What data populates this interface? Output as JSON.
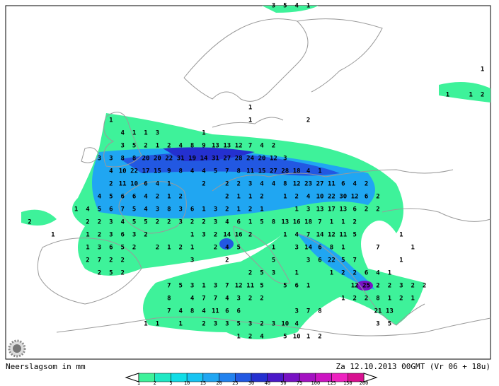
{
  "map": {
    "rows": [
      [
        null,
        null,
        null,
        null,
        null,
        null,
        null,
        null,
        null,
        null,
        null,
        null,
        null,
        null,
        null,
        null,
        null,
        null,
        null,
        null,
        null,
        3,
        5,
        4,
        1
      ],
      [],
      [],
      [],
      [],
      [
        null,
        null,
        null,
        null,
        null,
        null,
        null,
        null,
        null,
        null,
        null,
        null,
        null,
        null,
        null,
        null,
        null,
        null,
        null,
        null,
        null,
        null,
        null,
        null,
        null,
        null,
        null,
        null,
        null,
        null,
        null,
        null,
        null,
        null,
        null,
        null,
        null,
        null,
        null,
        1
      ],
      [],
      [
        null,
        null,
        null,
        null,
        null,
        null,
        null,
        null,
        null,
        null,
        null,
        null,
        null,
        null,
        null,
        null,
        null,
        null,
        null,
        null,
        null,
        null,
        null,
        null,
        null,
        null,
        null,
        null,
        null,
        null,
        null,
        null,
        null,
        null,
        null,
        null,
        1,
        null,
        1,
        2
      ],
      [
        null,
        null,
        null,
        null,
        null,
        null,
        null,
        null,
        null,
        null,
        null,
        null,
        null,
        null,
        null,
        null,
        null,
        null,
        null,
        1
      ],
      [
        null,
        null,
        null,
        null,
        null,
        null,
        null,
        1,
        null,
        null,
        null,
        null,
        null,
        null,
        null,
        null,
        null,
        null,
        null,
        1,
        null,
        null,
        null,
        null,
        2
      ],
      [
        null,
        null,
        null,
        null,
        null,
        null,
        null,
        null,
        4,
        1,
        1,
        3,
        null,
        null,
        null,
        1
      ],
      [
        null,
        null,
        null,
        null,
        null,
        null,
        null,
        null,
        3,
        5,
        2,
        1,
        2,
        4,
        8,
        9,
        13,
        13,
        12,
        7,
        4,
        2
      ],
      [
        null,
        null,
        null,
        null,
        null,
        null,
        3,
        3,
        8,
        8,
        20,
        20,
        22,
        31,
        19,
        14,
        31,
        27,
        28,
        24,
        20,
        12,
        3
      ],
      [
        null,
        null,
        null,
        null,
        null,
        null,
        null,
        4,
        10,
        22,
        17,
        15,
        9,
        8,
        4,
        4,
        5,
        7,
        8,
        11,
        15,
        27,
        28,
        18,
        4,
        1
      ],
      [
        null,
        null,
        null,
        null,
        null,
        null,
        null,
        2,
        11,
        10,
        6,
        4,
        1,
        null,
        null,
        2,
        null,
        2,
        2,
        3,
        4,
        4,
        8,
        12,
        23,
        27,
        11,
        6,
        4,
        2
      ],
      [
        null,
        null,
        null,
        null,
        null,
        null,
        4,
        5,
        6,
        6,
        4,
        2,
        1,
        2,
        null,
        null,
        null,
        2,
        1,
        1,
        2,
        null,
        1,
        2,
        4,
        10,
        22,
        30,
        12,
        6,
        2
      ],
      [
        null,
        null,
        null,
        null,
        1,
        4,
        5,
        6,
        7,
        5,
        4,
        3,
        8,
        3,
        6,
        1,
        3,
        2,
        1,
        2,
        1,
        null,
        null,
        1,
        3,
        13,
        17,
        13,
        6,
        2,
        2
      ],
      [
        2,
        null,
        null,
        null,
        null,
        2,
        2,
        3,
        4,
        5,
        5,
        2,
        2,
        3,
        2,
        2,
        3,
        4,
        6,
        1,
        5,
        8,
        13,
        16,
        18,
        7,
        1,
        1,
        2
      ],
      [
        null,
        null,
        1,
        null,
        null,
        1,
        2,
        3,
        6,
        3,
        2,
        null,
        null,
        null,
        1,
        3,
        2,
        14,
        16,
        2,
        null,
        null,
        1,
        4,
        7,
        14,
        12,
        11,
        5,
        null,
        null,
        null,
        1
      ],
      [
        null,
        null,
        null,
        null,
        null,
        1,
        3,
        6,
        5,
        2,
        null,
        2,
        1,
        2,
        1,
        null,
        2,
        4,
        5,
        null,
        null,
        1,
        null,
        3,
        14,
        6,
        8,
        1,
        null,
        null,
        7,
        null,
        null,
        1
      ],
      [
        null,
        null,
        null,
        null,
        null,
        2,
        7,
        2,
        2,
        null,
        null,
        null,
        null,
        null,
        3,
        null,
        null,
        2,
        null,
        null,
        null,
        5,
        null,
        null,
        3,
        6,
        22,
        5,
        7,
        null,
        null,
        null,
        1
      ],
      [
        null,
        null,
        null,
        null,
        null,
        null,
        2,
        5,
        2,
        null,
        null,
        null,
        null,
        null,
        null,
        null,
        null,
        null,
        null,
        2,
        5,
        3,
        null,
        1,
        null,
        null,
        1,
        2,
        2,
        6,
        4,
        1
      ],
      [
        null,
        null,
        null,
        null,
        null,
        null,
        null,
        null,
        null,
        null,
        null,
        null,
        7,
        5,
        3,
        1,
        3,
        7,
        12,
        11,
        5,
        null,
        5,
        6,
        1,
        null,
        null,
        null,
        12,
        25,
        2,
        2,
        3,
        2,
        2
      ],
      [
        null,
        null,
        null,
        null,
        null,
        null,
        null,
        null,
        null,
        null,
        null,
        null,
        8,
        null,
        4,
        7,
        7,
        4,
        3,
        2,
        2,
        null,
        null,
        null,
        null,
        null,
        null,
        1,
        2,
        2,
        8,
        1,
        2,
        1
      ],
      [
        null,
        null,
        null,
        null,
        null,
        null,
        null,
        null,
        null,
        null,
        null,
        null,
        7,
        4,
        8,
        4,
        11,
        6,
        6,
        null,
        null,
        null,
        null,
        3,
        7,
        8,
        null,
        null,
        null,
        null,
        21,
        13
      ],
      [
        null,
        null,
        null,
        null,
        null,
        null,
        null,
        null,
        null,
        null,
        1,
        1,
        null,
        1,
        null,
        2,
        3,
        3,
        5,
        3,
        2,
        3,
        10,
        4,
        null,
        null,
        null,
        null,
        null,
        null,
        3,
        5
      ],
      [
        null,
        null,
        null,
        null,
        null,
        null,
        null,
        null,
        null,
        null,
        null,
        null,
        null,
        null,
        null,
        null,
        null,
        null,
        1,
        2,
        4,
        null,
        5,
        10,
        1,
        2
      ]
    ]
  },
  "legend": {
    "title": "Neerslagsom in mm",
    "timestamp": "Za 12.10.2013 00GMT (Vr 06 + 18u)",
    "scale_labels": [
      1,
      2,
      5,
      10,
      15,
      20,
      25,
      30,
      40,
      50,
      75,
      100,
      125,
      150,
      200
    ],
    "scale_colors": [
      "#3ef29a",
      "#1fe8c4",
      "#10dde6",
      "#18c4f2",
      "#20a6f2",
      "#2282ee",
      "#2258e2",
      "#2430d0",
      "#4a18c8",
      "#7812c4",
      "#a412c2",
      "#cc14c2",
      "#ee22c0",
      "#d81090"
    ]
  }
}
